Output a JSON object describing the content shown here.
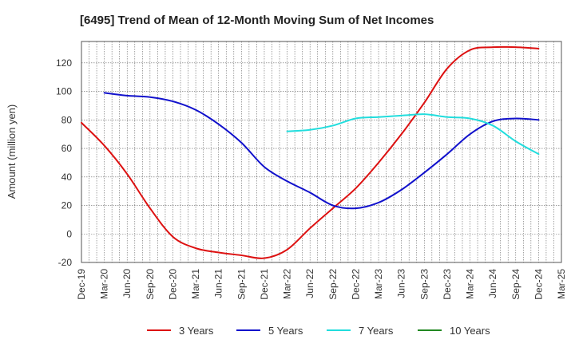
{
  "chart_data": {
    "type": "line",
    "title": "[6495]  Trend of Mean of 12-Month Moving Sum of Net Incomes",
    "xlabel": "",
    "ylabel": "Amount (million yen)",
    "ylim": [
      -20,
      135
    ],
    "yticks": [
      -20,
      0,
      20,
      40,
      60,
      80,
      100,
      120
    ],
    "xticks": [
      "Dec-19",
      "Mar-20",
      "Jun-20",
      "Sep-20",
      "Dec-20",
      "Mar-21",
      "Jun-21",
      "Sep-21",
      "Dec-21",
      "Mar-22",
      "Jun-22",
      "Sep-22",
      "Dec-22",
      "Mar-23",
      "Jun-23",
      "Sep-23",
      "Dec-23",
      "Mar-24",
      "Jun-24",
      "Sep-24",
      "Dec-24",
      "Mar-25"
    ],
    "grid": true,
    "legend_position": "bottom",
    "series": [
      {
        "name": "3 Years",
        "color": "#dd1111",
        "points": [
          [
            "Dec-19",
            78
          ],
          [
            "Mar-20",
            62
          ],
          [
            "Jun-20",
            42
          ],
          [
            "Sep-20",
            18
          ],
          [
            "Dec-20",
            -2
          ],
          [
            "Mar-21",
            -10
          ],
          [
            "Jun-21",
            -13
          ],
          [
            "Sep-21",
            -15
          ],
          [
            "Dec-21",
            -17
          ],
          [
            "Mar-22",
            -11
          ],
          [
            "Jun-22",
            4
          ],
          [
            "Sep-22",
            18
          ],
          [
            "Dec-22",
            32
          ],
          [
            "Mar-23",
            50
          ],
          [
            "Jun-23",
            70
          ],
          [
            "Sep-23",
            92
          ],
          [
            "Dec-23",
            116
          ],
          [
            "Mar-24",
            129
          ],
          [
            "Jun-24",
            131
          ],
          [
            "Sep-24",
            131
          ],
          [
            "Dec-24",
            130
          ]
        ]
      },
      {
        "name": "5 Years",
        "color": "#1111cc",
        "points": [
          [
            "Mar-20",
            99
          ],
          [
            "Jun-20",
            97
          ],
          [
            "Sep-20",
            96
          ],
          [
            "Dec-20",
            93
          ],
          [
            "Mar-21",
            87
          ],
          [
            "Jun-21",
            77
          ],
          [
            "Sep-21",
            64
          ],
          [
            "Dec-21",
            47
          ],
          [
            "Mar-22",
            37
          ],
          [
            "Jun-22",
            29
          ],
          [
            "Sep-22",
            20
          ],
          [
            "Dec-22",
            18
          ],
          [
            "Mar-23",
            22
          ],
          [
            "Jun-23",
            31
          ],
          [
            "Sep-23",
            43
          ],
          [
            "Dec-23",
            56
          ],
          [
            "Mar-24",
            70
          ],
          [
            "Jun-24",
            79
          ],
          [
            "Sep-24",
            81
          ],
          [
            "Dec-24",
            80
          ]
        ]
      },
      {
        "name": "7 Years",
        "color": "#22dddd",
        "points": [
          [
            "Mar-22",
            72
          ],
          [
            "Jun-22",
            73
          ],
          [
            "Sep-22",
            76
          ],
          [
            "Dec-22",
            81
          ],
          [
            "Mar-23",
            82
          ],
          [
            "Jun-23",
            83
          ],
          [
            "Sep-23",
            84
          ],
          [
            "Dec-23",
            82
          ],
          [
            "Mar-24",
            81
          ],
          [
            "Jun-24",
            76
          ],
          [
            "Sep-24",
            65
          ],
          [
            "Dec-24",
            56
          ]
        ]
      },
      {
        "name": "10 Years",
        "color": "#228822",
        "points": []
      }
    ]
  }
}
